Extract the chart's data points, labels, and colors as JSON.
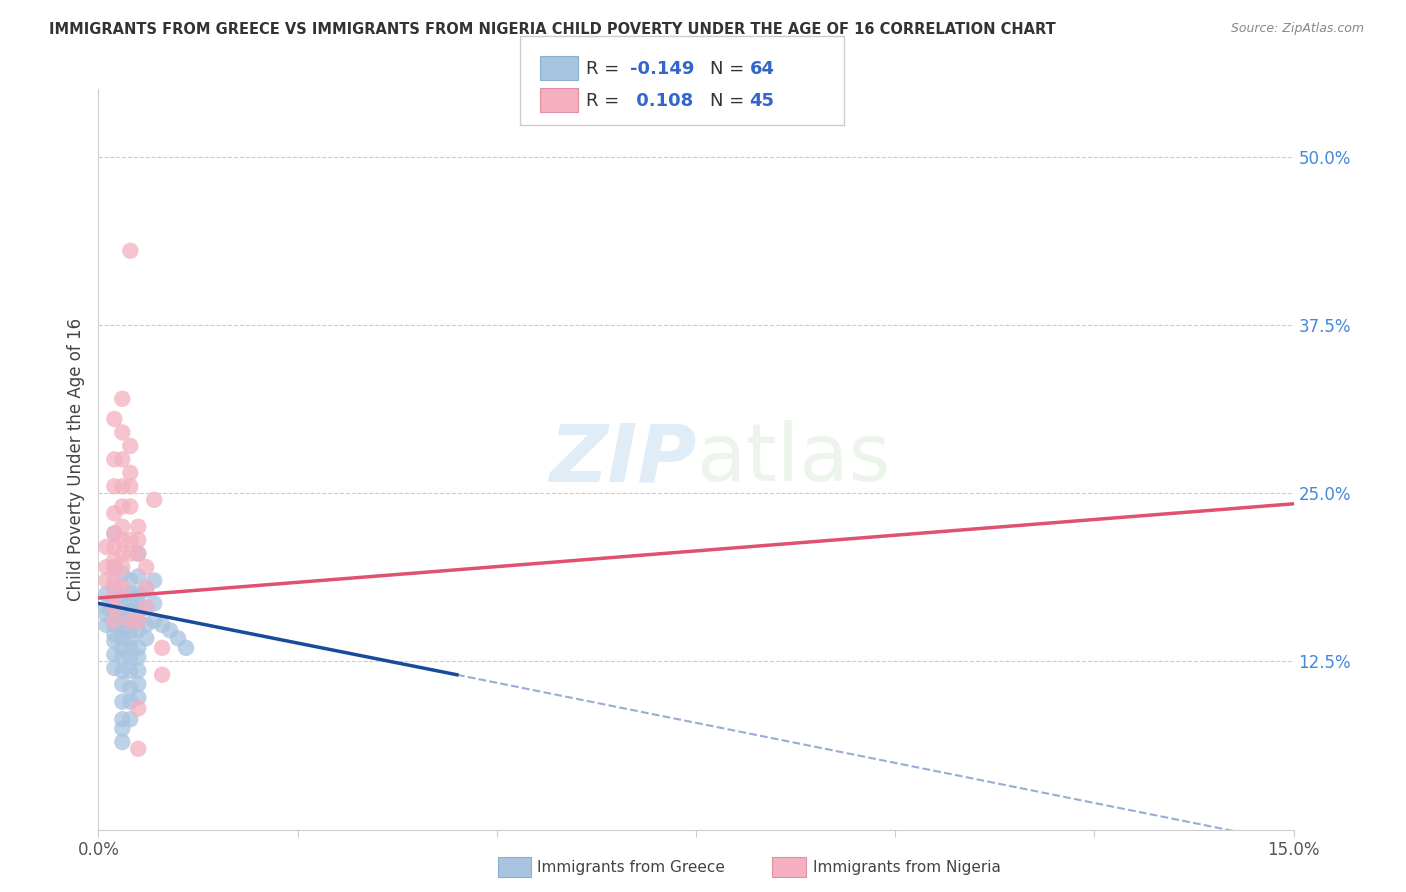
{
  "title": "IMMIGRANTS FROM GREECE VS IMMIGRANTS FROM NIGERIA CHILD POVERTY UNDER THE AGE OF 16 CORRELATION CHART",
  "source": "Source: ZipAtlas.com",
  "ylabel": "Child Poverty Under the Age of 16",
  "xlim": [
    0,
    0.15
  ],
  "ylim": [
    0,
    0.55
  ],
  "xticks": [
    0.0,
    0.025,
    0.05,
    0.075,
    0.1,
    0.125,
    0.15
  ],
  "xticklabels": [
    "0.0%",
    "",
    "",
    "",
    "",
    "",
    "15.0%"
  ],
  "right_yticks": [
    0.0,
    0.125,
    0.25,
    0.375,
    0.5
  ],
  "right_yticklabels": [
    "",
    "12.5%",
    "25.0%",
    "37.5%",
    "50.0%"
  ],
  "greece_color": "#a8c4e0",
  "nigeria_color": "#f4b0c0",
  "greece_line_color": "#1a4a9a",
  "nigeria_line_color": "#e05070",
  "greece_scatter": [
    [
      0.001,
      0.175
    ],
    [
      0.001,
      0.16
    ],
    [
      0.001,
      0.165
    ],
    [
      0.001,
      0.152
    ],
    [
      0.002,
      0.22
    ],
    [
      0.002,
      0.195
    ],
    [
      0.002,
      0.18
    ],
    [
      0.002,
      0.17
    ],
    [
      0.002,
      0.16
    ],
    [
      0.002,
      0.152
    ],
    [
      0.002,
      0.145
    ],
    [
      0.002,
      0.14
    ],
    [
      0.002,
      0.13
    ],
    [
      0.002,
      0.12
    ],
    [
      0.003,
      0.19
    ],
    [
      0.003,
      0.175
    ],
    [
      0.003,
      0.165
    ],
    [
      0.003,
      0.155
    ],
    [
      0.003,
      0.148
    ],
    [
      0.003,
      0.142
    ],
    [
      0.003,
      0.135
    ],
    [
      0.003,
      0.128
    ],
    [
      0.003,
      0.118
    ],
    [
      0.003,
      0.108
    ],
    [
      0.003,
      0.095
    ],
    [
      0.003,
      0.082
    ],
    [
      0.003,
      0.075
    ],
    [
      0.003,
      0.065
    ],
    [
      0.004,
      0.185
    ],
    [
      0.004,
      0.175
    ],
    [
      0.004,
      0.168
    ],
    [
      0.004,
      0.162
    ],
    [
      0.004,
      0.155
    ],
    [
      0.004,
      0.148
    ],
    [
      0.004,
      0.142
    ],
    [
      0.004,
      0.135
    ],
    [
      0.004,
      0.128
    ],
    [
      0.004,
      0.118
    ],
    [
      0.004,
      0.105
    ],
    [
      0.004,
      0.095
    ],
    [
      0.004,
      0.082
    ],
    [
      0.005,
      0.205
    ],
    [
      0.005,
      0.188
    ],
    [
      0.005,
      0.175
    ],
    [
      0.005,
      0.168
    ],
    [
      0.005,
      0.162
    ],
    [
      0.005,
      0.155
    ],
    [
      0.005,
      0.148
    ],
    [
      0.005,
      0.135
    ],
    [
      0.005,
      0.128
    ],
    [
      0.005,
      0.118
    ],
    [
      0.005,
      0.108
    ],
    [
      0.005,
      0.098
    ],
    [
      0.006,
      0.178
    ],
    [
      0.006,
      0.165
    ],
    [
      0.006,
      0.152
    ],
    [
      0.006,
      0.142
    ],
    [
      0.007,
      0.185
    ],
    [
      0.007,
      0.168
    ],
    [
      0.007,
      0.155
    ],
    [
      0.008,
      0.152
    ],
    [
      0.009,
      0.148
    ],
    [
      0.01,
      0.142
    ],
    [
      0.011,
      0.135
    ]
  ],
  "nigeria_scatter": [
    [
      0.001,
      0.21
    ],
    [
      0.001,
      0.195
    ],
    [
      0.001,
      0.185
    ],
    [
      0.002,
      0.305
    ],
    [
      0.002,
      0.275
    ],
    [
      0.002,
      0.255
    ],
    [
      0.002,
      0.235
    ],
    [
      0.002,
      0.22
    ],
    [
      0.002,
      0.21
    ],
    [
      0.002,
      0.2
    ],
    [
      0.002,
      0.195
    ],
    [
      0.002,
      0.185
    ],
    [
      0.002,
      0.175
    ],
    [
      0.002,
      0.165
    ],
    [
      0.002,
      0.155
    ],
    [
      0.003,
      0.32
    ],
    [
      0.003,
      0.295
    ],
    [
      0.003,
      0.275
    ],
    [
      0.003,
      0.255
    ],
    [
      0.003,
      0.24
    ],
    [
      0.003,
      0.225
    ],
    [
      0.003,
      0.215
    ],
    [
      0.003,
      0.205
    ],
    [
      0.003,
      0.195
    ],
    [
      0.003,
      0.18
    ],
    [
      0.004,
      0.43
    ],
    [
      0.004,
      0.285
    ],
    [
      0.004,
      0.265
    ],
    [
      0.004,
      0.255
    ],
    [
      0.004,
      0.24
    ],
    [
      0.004,
      0.215
    ],
    [
      0.004,
      0.205
    ],
    [
      0.004,
      0.155
    ],
    [
      0.005,
      0.225
    ],
    [
      0.005,
      0.215
    ],
    [
      0.005,
      0.205
    ],
    [
      0.005,
      0.155
    ],
    [
      0.005,
      0.09
    ],
    [
      0.005,
      0.06
    ],
    [
      0.006,
      0.195
    ],
    [
      0.006,
      0.18
    ],
    [
      0.006,
      0.165
    ],
    [
      0.007,
      0.245
    ],
    [
      0.008,
      0.135
    ],
    [
      0.008,
      0.115
    ]
  ],
  "greece_trendline_solid": [
    [
      0.0,
      0.168
    ],
    [
      0.045,
      0.115
    ]
  ],
  "greece_trendline_dashed": [
    [
      0.045,
      0.115
    ],
    [
      0.15,
      -0.01
    ]
  ],
  "nigeria_trendline": [
    [
      0.0,
      0.172
    ],
    [
      0.15,
      0.242
    ]
  ]
}
